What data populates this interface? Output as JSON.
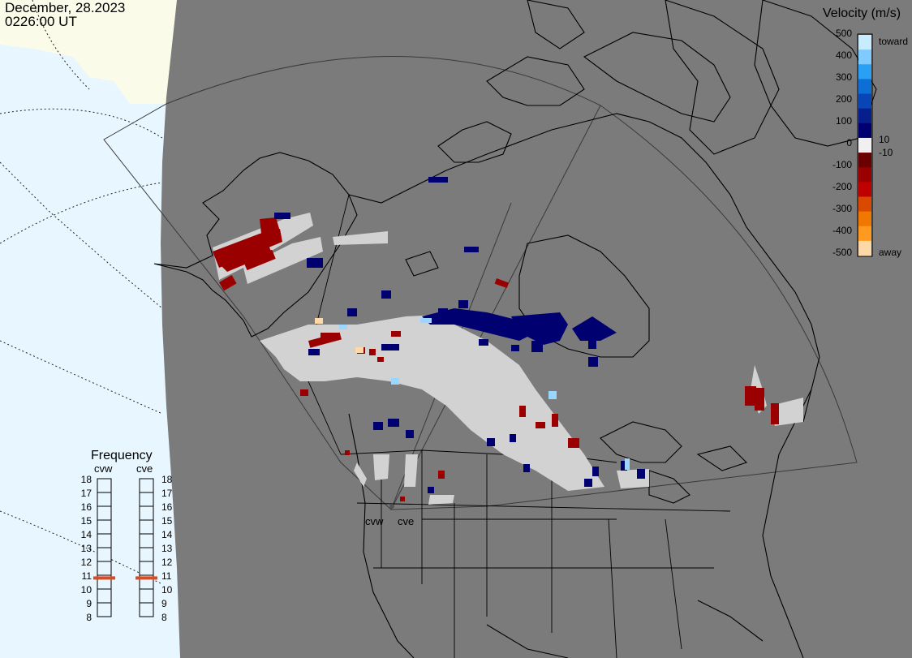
{
  "header": {
    "date": "December, 28.2023",
    "time": "0226:00 UT"
  },
  "legend": {
    "title": "Velocity (m/s)",
    "ticks": [
      "500",
      "400",
      "300",
      "200",
      "100",
      "0",
      "-100",
      "-200",
      "-300",
      "-400",
      "-500"
    ],
    "toward_label": "toward",
    "away_label": "away",
    "small_pos": "10",
    "small_neg": "-10",
    "colors": [
      "#c8ecff",
      "#7fcaff",
      "#2aa0f5",
      "#0d6fd6",
      "#0a45b5",
      "#061f8c",
      "#000070",
      "#f0f0f0",
      "#6a0000",
      "#9b0000",
      "#c00000",
      "#d94a00",
      "#f07800",
      "#ff9a20",
      "#ffd8a8"
    ]
  },
  "frequency": {
    "title": "Frequency",
    "radars": [
      "cvw",
      "cve"
    ],
    "scale": [
      "18",
      "17",
      "16",
      "15",
      "14",
      "13",
      "12",
      "11",
      "10",
      "9",
      "8"
    ],
    "cvw_mhz": 10.8,
    "cve_mhz": 10.8,
    "marker_color": "#e0481e"
  },
  "map": {
    "land_color": "#7b7b7b",
    "ocean_color": "#e8f6ff",
    "ice_color": "#fbfbea",
    "site_labels": [
      "cvw",
      "cve"
    ],
    "gray_scatter_color": "#d2d2d2"
  }
}
